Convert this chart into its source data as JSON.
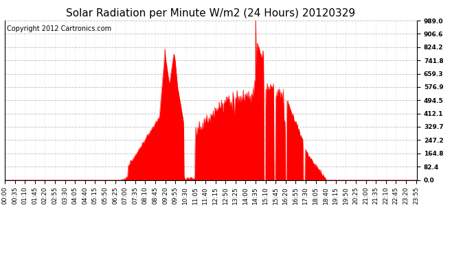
{
  "title": "Solar Radiation per Minute W/m2 (24 Hours) 20120329",
  "copyright_text": "Copyright 2012 Cartronics.com",
  "y_min": 0.0,
  "y_max": 989.0,
  "y_ticks": [
    0.0,
    82.4,
    164.8,
    247.2,
    329.7,
    412.1,
    494.5,
    576.9,
    659.3,
    741.8,
    824.2,
    906.6,
    989.0
  ],
  "fill_color": "#FF0000",
  "line_color": "#FF0000",
  "background_color": "#FFFFFF",
  "grid_color": "#AAAAAA",
  "title_fontsize": 11,
  "copyright_fontsize": 7,
  "tick_fontsize": 6.5
}
